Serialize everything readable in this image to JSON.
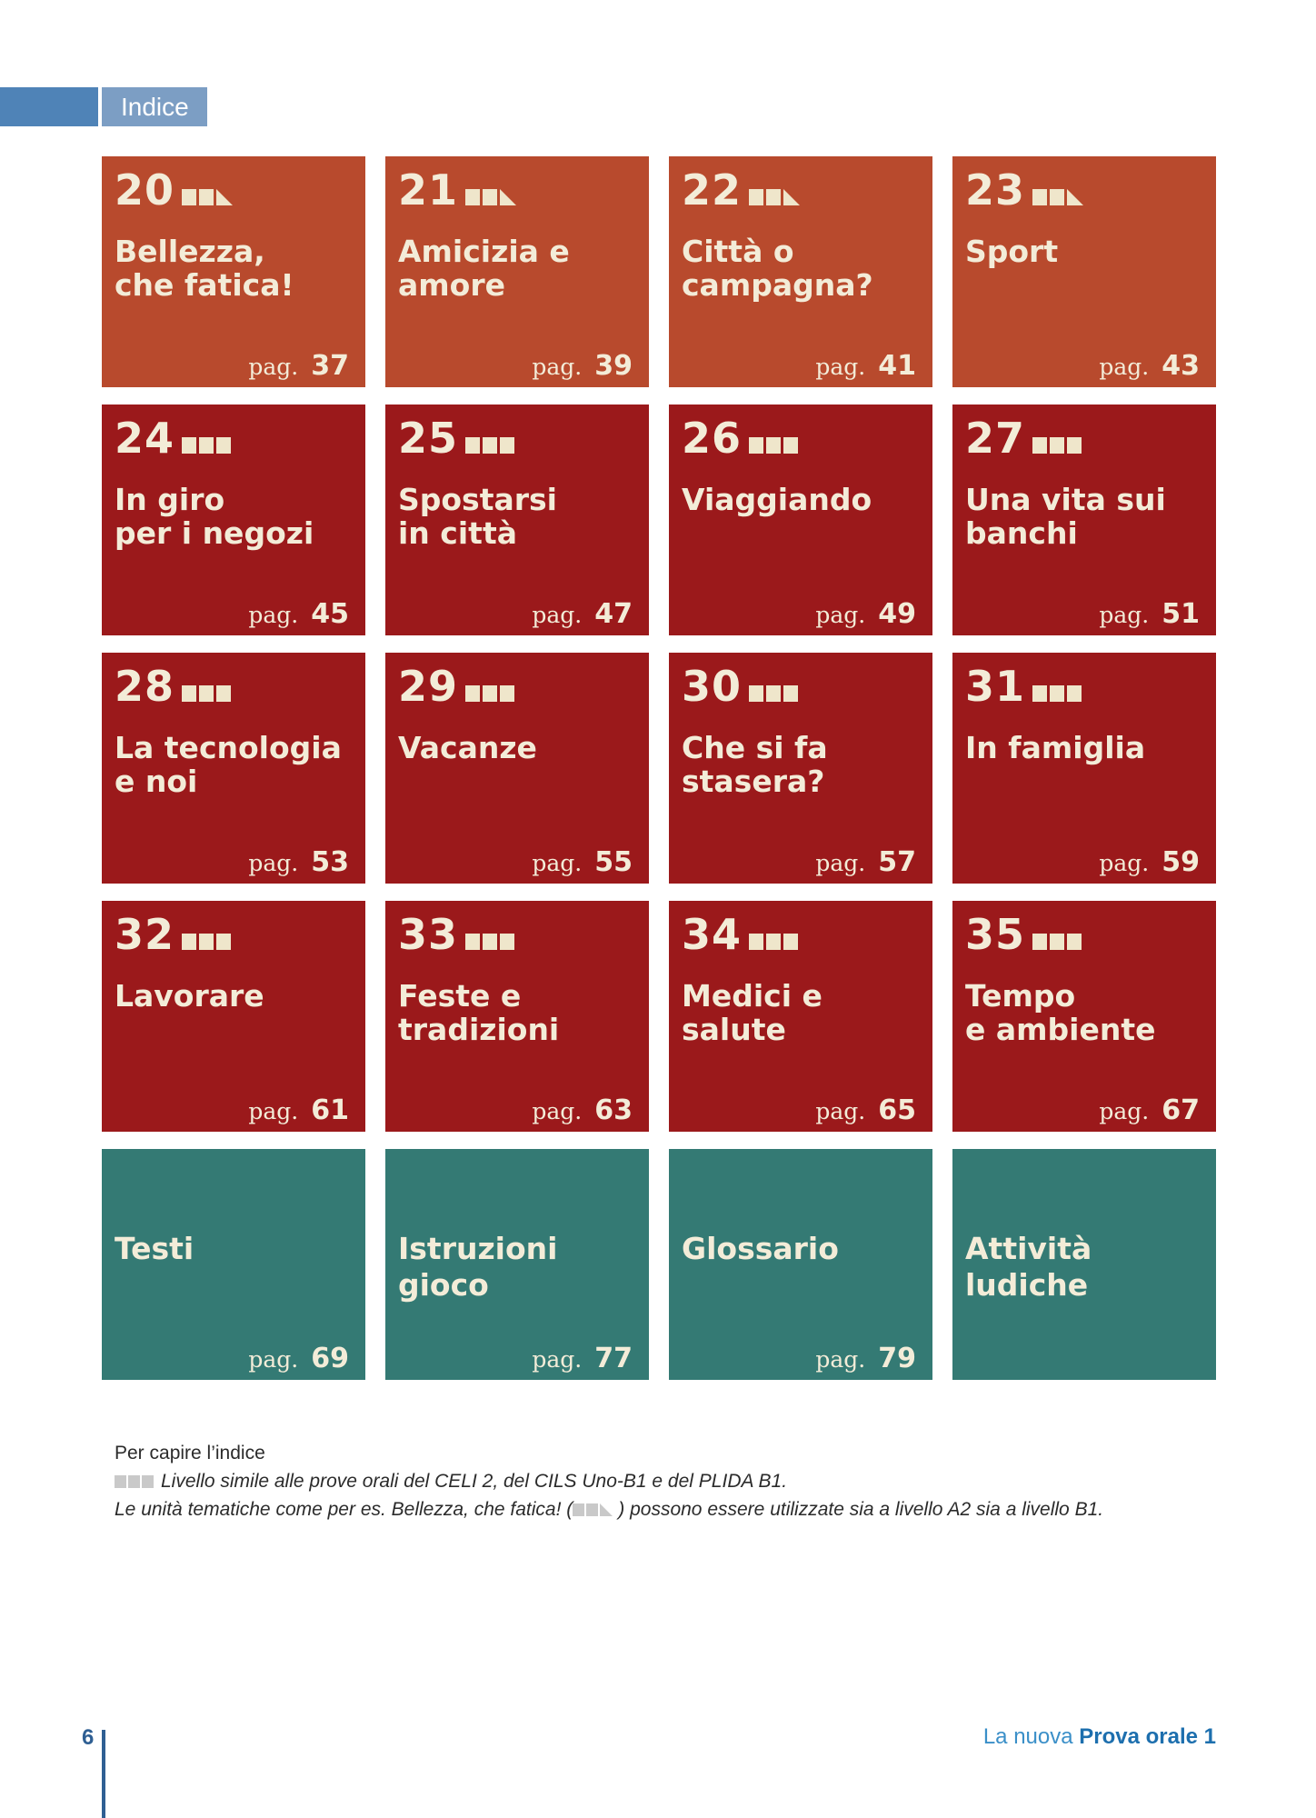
{
  "header": {
    "label": "Indice"
  },
  "tiles": [
    {
      "unit": "20",
      "level": "a2b1",
      "color": "orange",
      "title": "Bellezza,\nche fatica!",
      "pag_label": "pag.",
      "page": "37"
    },
    {
      "unit": "21",
      "level": "a2b1",
      "color": "orange",
      "title": "Amicizia e\namore",
      "pag_label": "pag.",
      "page": "39"
    },
    {
      "unit": "22",
      "level": "a2b1",
      "color": "orange",
      "title": "Città o\ncampagna?",
      "pag_label": "pag.",
      "page": "41"
    },
    {
      "unit": "23",
      "level": "a2b1",
      "color": "orange",
      "title": "Sport",
      "pag_label": "pag.",
      "page": "43"
    },
    {
      "unit": "24",
      "level": "b1",
      "color": "red",
      "title": "In giro\nper i negozi",
      "pag_label": "pag.",
      "page": "45"
    },
    {
      "unit": "25",
      "level": "b1",
      "color": "red",
      "title": "Spostarsi\nin città",
      "pag_label": "pag.",
      "page": "47"
    },
    {
      "unit": "26",
      "level": "b1",
      "color": "red",
      "title": "Viaggiando",
      "pag_label": "pag.",
      "page": "49"
    },
    {
      "unit": "27",
      "level": "b1",
      "color": "red",
      "title": "Una vita sui\nbanchi",
      "pag_label": "pag.",
      "page": "51"
    },
    {
      "unit": "28",
      "level": "b1",
      "color": "red",
      "title": "La tecnologia\ne noi",
      "pag_label": "pag.",
      "page": "53"
    },
    {
      "unit": "29",
      "level": "b1",
      "color": "red",
      "title": "Vacanze",
      "pag_label": "pag.",
      "page": "55"
    },
    {
      "unit": "30",
      "level": "b1",
      "color": "red",
      "title": "Che si fa\nstasera?",
      "pag_label": "pag.",
      "page": "57"
    },
    {
      "unit": "31",
      "level": "b1",
      "color": "red",
      "title": "In famiglia",
      "pag_label": "pag.",
      "page": "59"
    },
    {
      "unit": "32",
      "level": "b1",
      "color": "red",
      "title": "Lavorare",
      "pag_label": "pag.",
      "page": "61"
    },
    {
      "unit": "33",
      "level": "b1",
      "color": "red",
      "title": "Feste e\ntradizioni",
      "pag_label": "pag.",
      "page": "63"
    },
    {
      "unit": "34",
      "level": "b1",
      "color": "red",
      "title": "Medici e salute",
      "pag_label": "pag.",
      "page": "65"
    },
    {
      "unit": "35",
      "level": "b1",
      "color": "red",
      "title": "Tempo\ne ambiente",
      "pag_label": "pag.",
      "page": "67"
    },
    {
      "unit": "",
      "level": "",
      "color": "teal",
      "title": "Testi",
      "pag_label": "pag.",
      "page": "69"
    },
    {
      "unit": "",
      "level": "",
      "color": "teal",
      "title": "Istruzioni\ngioco",
      "pag_label": "pag.",
      "page": "77"
    },
    {
      "unit": "",
      "level": "",
      "color": "teal",
      "title": "Glossario",
      "pag_label": "pag.",
      "page": "79"
    },
    {
      "unit": "",
      "level": "",
      "color": "teal",
      "title": "Attività\nludiche",
      "pag_label": "",
      "page": ""
    }
  ],
  "legend": {
    "heading": "Per capire l’indice",
    "line1": "Livello simile alle prove orali del CELI 2, del CILS Uno-B1 e del PLIDA B1.",
    "line2_before": "Le unità tematiche come per es. Bellezza, che fatica! (",
    "line2_after": ") possono essere utilizzate sia a livello A2 sia a livello B1."
  },
  "footer": {
    "page_number": "6",
    "brand_light": "La nuova ",
    "brand_strong": "Prova orale 1"
  },
  "colors": {
    "orange": "#b84a2d",
    "red": "#9b191b",
    "teal": "#347a74",
    "blue": "#4f83b7"
  }
}
